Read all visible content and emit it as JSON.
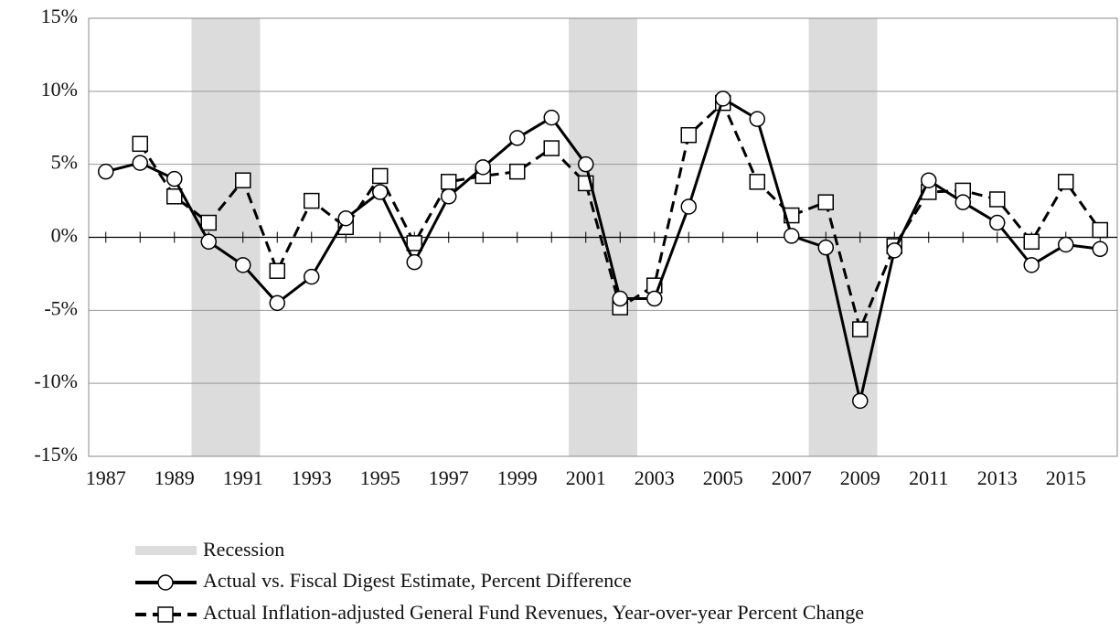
{
  "chart_data": {
    "type": "line",
    "x": [
      1987,
      1988,
      1989,
      1990,
      1991,
      1992,
      1993,
      1994,
      1995,
      1996,
      1997,
      1998,
      1999,
      2000,
      2001,
      2002,
      2003,
      2004,
      2005,
      2006,
      2007,
      2008,
      2009,
      2010,
      2011,
      2012,
      2013,
      2014,
      2015,
      2016
    ],
    "xlim": [
      1986.5,
      2016.5
    ],
    "xticks": [
      1987,
      1989,
      1991,
      1993,
      1995,
      1997,
      1999,
      2001,
      2003,
      2005,
      2007,
      2009,
      2011,
      2013,
      2015
    ],
    "ylim": [
      -15,
      15
    ],
    "yticks": [
      {
        "value": -15,
        "label": "-15%"
      },
      {
        "value": -10,
        "label": "-10%"
      },
      {
        "value": -5,
        "label": "-5%"
      },
      {
        "value": 0,
        "label": "0%"
      },
      {
        "value": 5,
        "label": "5%"
      },
      {
        "value": 10,
        "label": "10%"
      },
      {
        "value": 15,
        "label": "15%"
      }
    ],
    "grid": true,
    "recession": {
      "name": "Recession",
      "color": "#dcdcdc",
      "spans": [
        [
          1990,
          1991
        ],
        [
          2001,
          2002
        ],
        [
          2008,
          2009
        ]
      ]
    },
    "series": [
      {
        "name": "Actual vs. Fiscal Digest Estimate, Percent Difference",
        "color": "#000000",
        "linestyle": "solid",
        "marker": "circle",
        "values": [
          4.5,
          5.1,
          4.0,
          -0.3,
          -1.9,
          -4.5,
          -2.7,
          1.3,
          3.1,
          -1.7,
          2.8,
          4.8,
          6.8,
          8.2,
          5.0,
          -4.2,
          -4.2,
          2.1,
          9.5,
          8.1,
          0.1,
          -0.7,
          -11.2,
          -0.9,
          3.9,
          2.4,
          1.0,
          -1.9,
          -0.5,
          -0.8
        ]
      },
      {
        "name": "Actual Inflation-adjusted General Fund Revenues, Year-over-year Percent Change",
        "color": "#000000",
        "linestyle": "dashed",
        "marker": "square",
        "values": [
          null,
          6.4,
          2.8,
          1.0,
          3.9,
          -2.3,
          2.5,
          0.7,
          4.2,
          -0.4,
          3.8,
          4.2,
          4.5,
          6.1,
          3.7,
          -4.8,
          -3.3,
          7.0,
          9.2,
          3.8,
          1.5,
          2.4,
          -6.3,
          -0.6,
          3.1,
          3.2,
          2.6,
          -0.3,
          3.8,
          0.5
        ]
      }
    ]
  }
}
